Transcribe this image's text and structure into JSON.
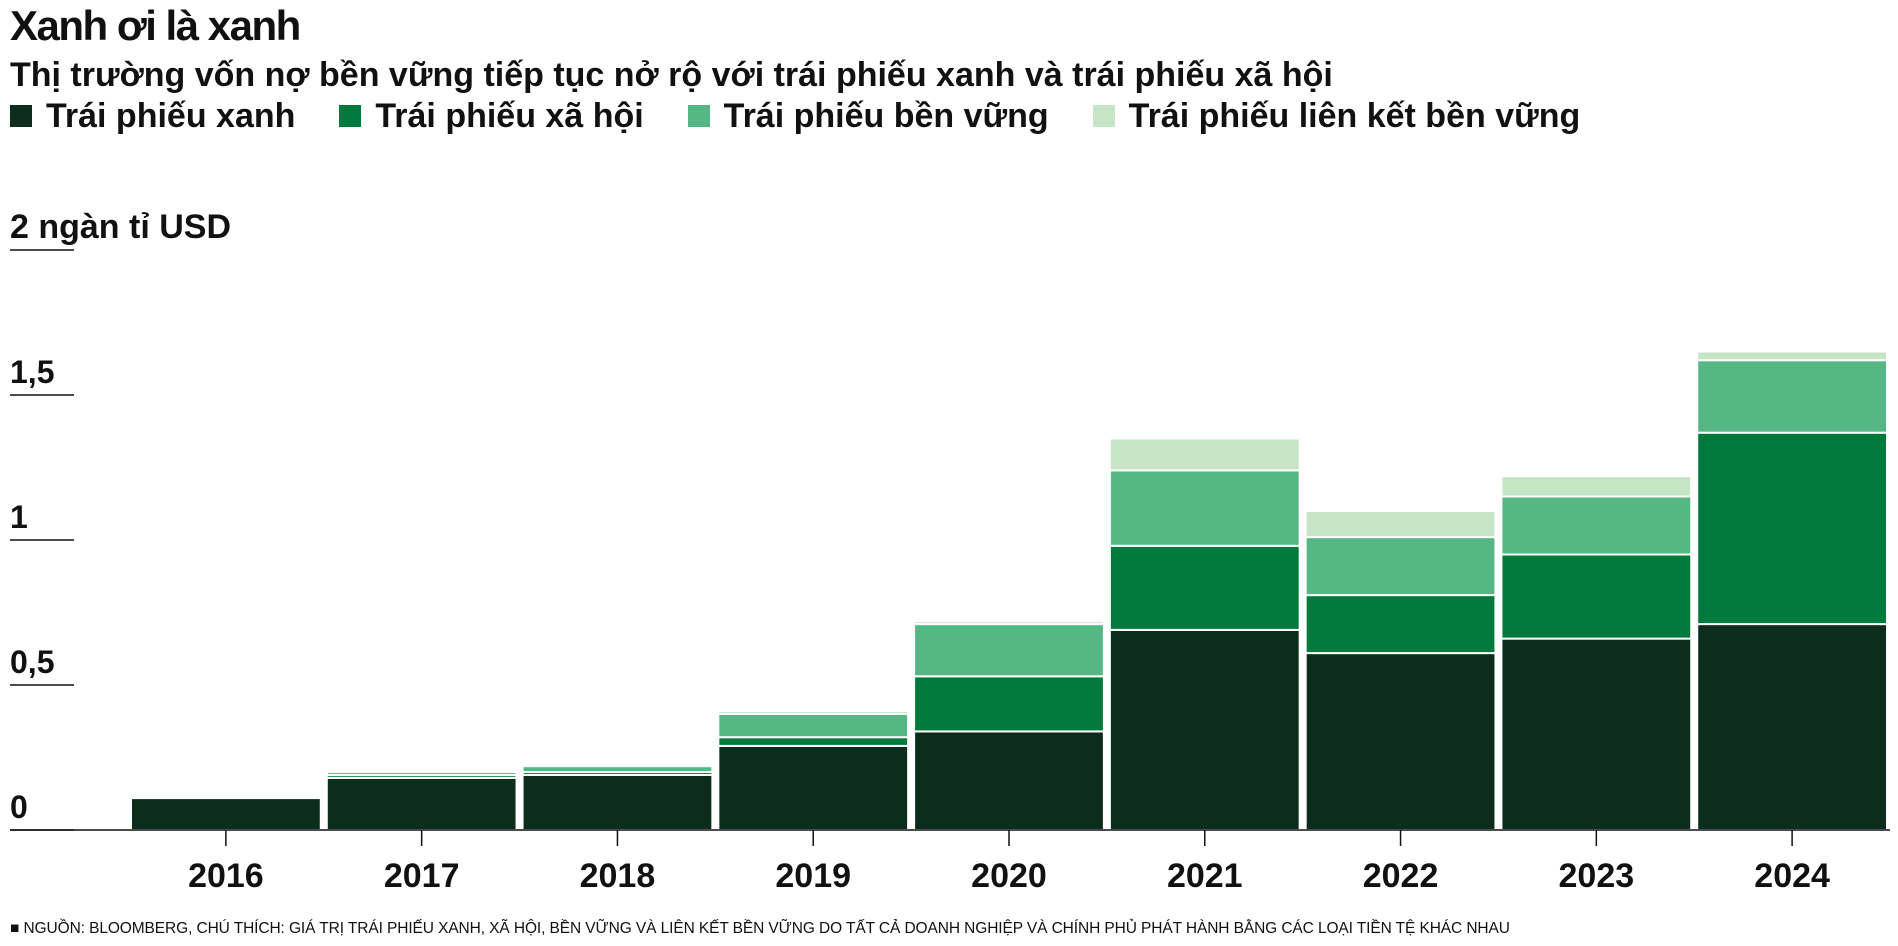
{
  "title": "Xanh ơi là xanh",
  "subtitle": "Thị trường vốn nợ bền vững tiếp tục nở rộ với trái phiếu xanh và trái phiếu xã hội",
  "unit_label": "2 ngàn tỉ USD",
  "footnote": "■ NGUỒN: BLOOMBERG, CHÚ THÍCH: GIÁ TRỊ TRÁI PHIẾU XANH, XÃ HỘI, BỀN VỮNG VÀ LIÊN KẾT BỀN VỮNG DO TẤT CẢ DOANH NGHIỆP VÀ CHÍNH PHỦ PHÁT HÀNH BẰNG CÁC LOẠI TIỀN TỆ KHÁC NHAU",
  "chart_data": {
    "type": "bar",
    "stacked": true,
    "categories": [
      "2016",
      "2017",
      "2018",
      "2019",
      "2020",
      "2021",
      "2022",
      "2023",
      "2024"
    ],
    "series": [
      {
        "name": "Trái phiếu xanh",
        "color": "#0c2c1c",
        "values": [
          0.11,
          0.18,
          0.19,
          0.29,
          0.34,
          0.69,
          0.61,
          0.66,
          0.71
        ]
      },
      {
        "name": "Trái phiếu xã hội",
        "color": "#007a3c",
        "values": [
          0.0,
          0.01,
          0.01,
          0.03,
          0.19,
          0.29,
          0.2,
          0.29,
          0.66
        ]
      },
      {
        "name": "Trái phiếu bền vững",
        "color": "#55b783",
        "values": [
          0.0,
          0.01,
          0.02,
          0.08,
          0.18,
          0.26,
          0.2,
          0.2,
          0.25
        ]
      },
      {
        "name": "Trái phiếu liên kết bền vững",
        "color": "#c5e5c5",
        "values": [
          0.0,
          0.0,
          0.0,
          0.01,
          0.01,
          0.11,
          0.09,
          0.07,
          0.03
        ]
      }
    ],
    "y_ticks": [
      "0",
      "0,5",
      "1",
      "1,5"
    ],
    "y_tick_values": [
      0,
      0.5,
      1,
      1.5
    ],
    "ylim": [
      0,
      2
    ],
    "grid": false,
    "legend_position": "top-left"
  }
}
